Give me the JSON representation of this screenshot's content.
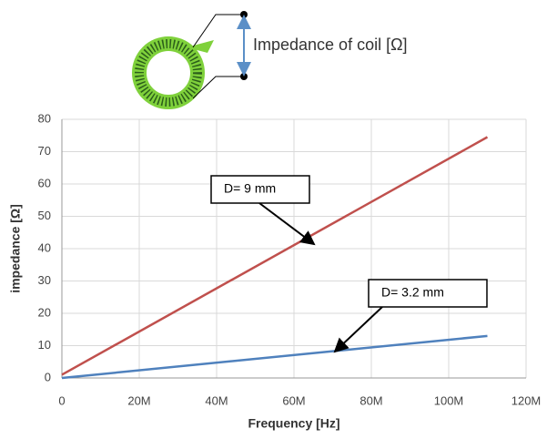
{
  "diagram": {
    "label": "Impedance of coil [Ω]"
  },
  "chart_data": {
    "type": "line",
    "x_label": "Frequency [Hz]",
    "y_label": "impedance [Ω]",
    "x": [
      0,
      110000000
    ],
    "series": [
      {
        "name": "D= 9 mm",
        "color": "#c0504d",
        "values": [
          1,
          74.5
        ]
      },
      {
        "name": "D= 3.2 mm",
        "color": "#4f81bd",
        "values": [
          0,
          13
        ]
      }
    ],
    "xlim": [
      0,
      120000000
    ],
    "xticks": [
      0,
      {
        "value": 20000000,
        "label": "20M"
      },
      {
        "value": 40000000,
        "label": "40M"
      },
      {
        "value": 60000000,
        "label": "60M"
      },
      {
        "value": 80000000,
        "label": "80M"
      },
      {
        "value": 100000000,
        "label": "100M"
      },
      {
        "value": 120000000,
        "label": "120M"
      }
    ],
    "ylim": [
      0,
      80
    ],
    "yticks": [
      0,
      10,
      20,
      30,
      40,
      50,
      60,
      70,
      80
    ],
    "grid": true
  }
}
